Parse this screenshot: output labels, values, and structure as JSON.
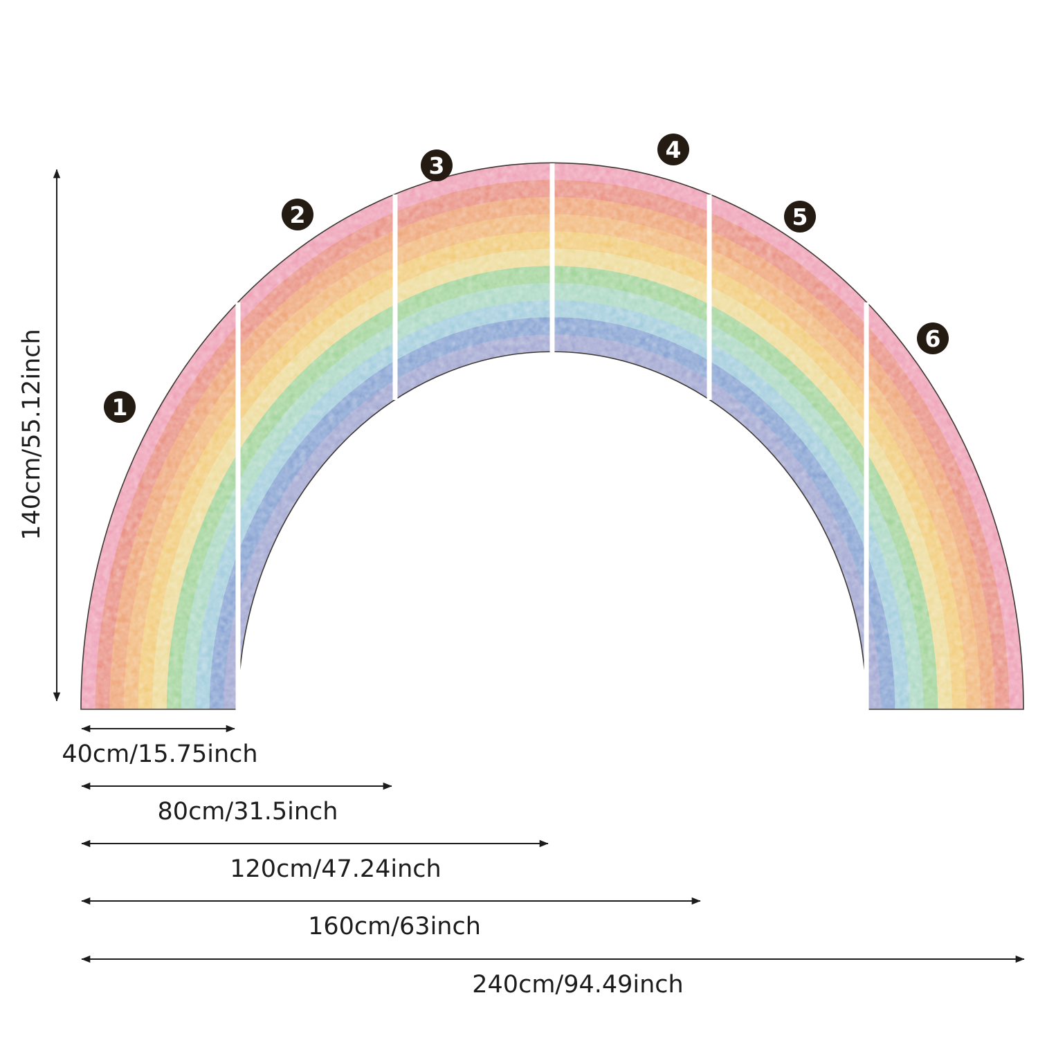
{
  "panels": [
    {
      "number": "1"
    },
    {
      "number": "2"
    },
    {
      "number": "3"
    },
    {
      "number": "4"
    },
    {
      "number": "5"
    },
    {
      "number": "6"
    }
  ],
  "dimensions": {
    "height": "140cm/55.12inch",
    "width_40": "40cm/15.75inch",
    "width_80": "80cm/31.5inch",
    "width_120": "120cm/47.24inch",
    "width_160": "160cm/63inch",
    "width_240": "240cm/94.49inch"
  },
  "colors": {
    "background": "#ffffff",
    "line": "#1c1c1c",
    "text": "#1c1c1c",
    "badge": "#241b13",
    "badge_number": "#ffffff",
    "divider": "#ffffff",
    "outline": "#3d3833",
    "bands": [
      "#efa3b8",
      "#ea9487",
      "#efa87c",
      "#f2bb80",
      "#f2cd7e",
      "#eedc9c",
      "#a5d59e",
      "#aed9c5",
      "#a5cedd",
      "#8aa5d3",
      "#a4a9d2"
    ]
  }
}
